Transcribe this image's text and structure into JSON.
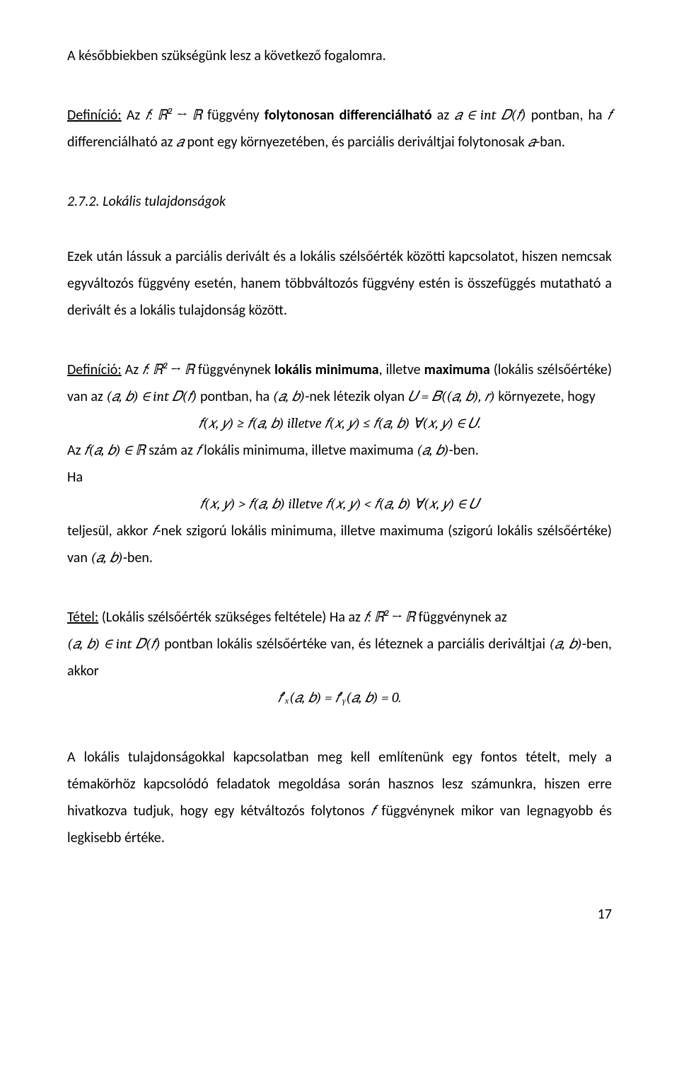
{
  "line1": "A későbbiekben szükségünk lesz a következő fogalomra.",
  "def1_lead": "Definíció:",
  "def1_a": " Az ",
  "def1_m1": "𝑓: ℝ² → ℝ",
  "def1_b": " függvény ",
  "def1_bold": "folytonosan differenciálható",
  "def1_c": " az ",
  "def1_m2": "𝑎 ∈ int 𝐷(𝑓)",
  "def1_d": " pontban, ha ",
  "def1_m3": "𝑓",
  "def1_e": " differenciálható az ",
  "def1_m4": "𝑎",
  "def1_f": " pont egy környezetében, és parciális deriváltjai folytonosak ",
  "def1_m5": "𝑎",
  "def1_g": "-ban.",
  "heading": "2.7.2. Lokális tulajdonságok",
  "body1": "Ezek után lássuk a parciális derivált és a lokális szélsőérték közötti kapcsolatot, hiszen nemcsak egyváltozós függvény esetén, hanem többváltozós függvény estén is összefüggés mutatható a derivált és a lokális tulajdonság között.",
  "def2_lead": "Definíció:",
  "def2_a": " Az ",
  "def2_m1": "𝑓: ℝ² → ℝ",
  "def2_b": " függvénynek ",
  "def2_bold1": "lokális minimuma",
  "def2_c": ", illetve ",
  "def2_bold2": "maximuma",
  "def2_d": " (lokális szélsőértéke) van az ",
  "def2_m2": "(𝑎, 𝑏) ∈ int 𝐷(𝑓)",
  "def2_e": " pontban, ha ",
  "def2_m3": "(𝑎, 𝑏)",
  "def2_f": "-nek létezik olyan ",
  "def2_m4": "𝑈 = 𝐵((𝑎, 𝑏), 𝑟)",
  "def2_g": " környezete, hogy",
  "def2_eq1": "𝑓(𝑥, 𝑦) ≥ 𝑓(𝑎, 𝑏) illetve 𝑓(𝑥, 𝑦) ≤ 𝑓(𝑎, 𝑏)   ∀(𝑥, 𝑦) ∈ 𝑈.",
  "def2_h": "Az ",
  "def2_m5": "𝑓(𝑎, 𝑏) ∈ ℝ",
  "def2_i": " szám az ",
  "def2_m5b": "𝑓",
  "def2_i2": " lokális minimuma, illetve maximuma ",
  "def2_m6": "(𝑎, 𝑏)",
  "def2_j": "-ben.",
  "def2_ha": "Ha",
  "def2_eq2": "𝑓(𝑥, 𝑦) > 𝑓(𝑎, 𝑏) illetve 𝑓(𝑥, 𝑦) < 𝑓(𝑎, 𝑏)   ∀(𝑥, 𝑦) ∈ 𝑈",
  "def2_k": "teljesül, akkor ",
  "def2_m7": "𝑓",
  "def2_l": "-nek szigorú lokális minimuma, illetve maximuma (szigorú lokális szélsőértéke) van ",
  "def2_m8": "(𝑎, 𝑏)",
  "def2_m": "-ben.",
  "thm_lead": "Tétel:",
  "thm_a": " (Lokális szélsőérték szükséges feltétele) Ha az ",
  "thm_m1": "𝑓: ℝ² → ℝ",
  "thm_b": " függvénynek az",
  "thm_m2": "(𝑎, 𝑏) ∈ int 𝐷(𝑓)",
  "thm_c": " pontban lokális szélsőértéke van, és léteznek a parciális deriváltjai ",
  "thm_m3": "(𝑎, 𝑏)",
  "thm_d": "-ben, akkor",
  "thm_eq": "𝑓′ₓ(𝑎, 𝑏) = 𝑓′ᵧ(𝑎, 𝑏) = 0.",
  "body2a": "A lokális tulajdonságokkal kapcsolatban meg kell említenünk egy fontos tételt, mely a témakörhöz kapcsolódó feladatok megoldása során hasznos lesz számunkra, hiszen erre hivatkozva tudjuk, hogy egy kétváltozós folytonos ",
  "body2m": "𝑓",
  "body2b": " függvénynek mikor van legnagyobb és legkisebb értéke.",
  "pagenum": "17"
}
